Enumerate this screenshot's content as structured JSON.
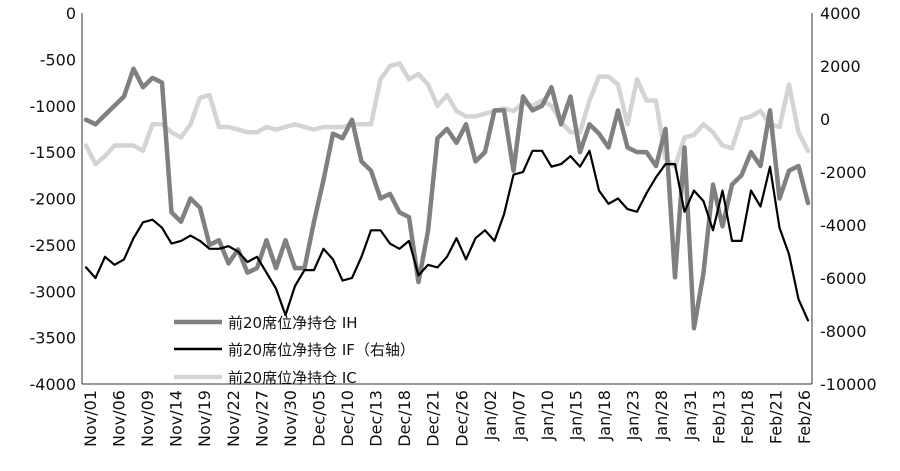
{
  "chart_data": {
    "type": "line",
    "x_tick_labels": [
      "Nov/01",
      "Nov/06",
      "Nov/09",
      "Nov/14",
      "Nov/19",
      "Nov/22",
      "Nov/27",
      "Nov/30",
      "Dec/05",
      "Dec/10",
      "Dec/13",
      "Dec/18",
      "Dec/21",
      "Dec/26",
      "Jan/02",
      "Jan/07",
      "Jan/10",
      "Jan/15",
      "Jan/18",
      "Jan/23",
      "Jan/28",
      "Jan/31",
      "Feb/13",
      "Feb/18",
      "Feb/21",
      "Feb/26"
    ],
    "y_left": {
      "min": -4000,
      "max": 0,
      "ticks": [
        0,
        -500,
        -1000,
        -1500,
        -2000,
        -2500,
        -3000,
        -3500,
        -4000
      ]
    },
    "y_right": {
      "min": -10000,
      "max": 4000,
      "ticks": [
        4000,
        2000,
        0,
        -2000,
        -4000,
        -6000,
        -8000,
        -10000
      ]
    },
    "grid": false,
    "legend_position": "bottom-left",
    "series": [
      {
        "name": "前20席位净持仓 IH",
        "axis": "left",
        "color": "#808080",
        "values": [
          -1150,
          -1200,
          -1100,
          -1000,
          -900,
          -600,
          -800,
          -700,
          -750,
          -2150,
          -2250,
          -2000,
          -2100,
          -2500,
          -2450,
          -2700,
          -2550,
          -2800,
          -2750,
          -2450,
          -2750,
          -2450,
          -2750,
          -2750,
          -2250,
          -1800,
          -1300,
          -1350,
          -1150,
          -1600,
          -1700,
          -2000,
          -1950,
          -2150,
          -2200,
          -2900,
          -2350,
          -1350,
          -1250,
          -1400,
          -1200,
          -1600,
          -1500,
          -1050,
          -1050,
          -1700,
          -900,
          -1050,
          -1000,
          -800,
          -1200,
          -900,
          -1500,
          -1200,
          -1300,
          -1450,
          -1050,
          -1450,
          -1500,
          -1500,
          -1650,
          -1250,
          -2850,
          -1450,
          -3400,
          -2800,
          -1850,
          -2300,
          -1850,
          -1750,
          -1500,
          -1650,
          -1050,
          -2000,
          -1700,
          -1650,
          -2050
        ]
      },
      {
        "name": "前20席位净持仓 IF（右轴）",
        "axis": "right",
        "color": "#000000",
        "values": [
          -5600,
          -6000,
          -5200,
          -5500,
          -5300,
          -4500,
          -3900,
          -3800,
          -4100,
          -4700,
          -4600,
          -4400,
          -4600,
          -4900,
          -4900,
          -4800,
          -5000,
          -5400,
          -5200,
          -5800,
          -6400,
          -7400,
          -6300,
          -5700,
          -5700,
          -4900,
          -5300,
          -6100,
          -6000,
          -5200,
          -4200,
          -4200,
          -4700,
          -4900,
          -4600,
          -5900,
          -5500,
          -5600,
          -5200,
          -4500,
          -5300,
          -4500,
          -4200,
          -4600,
          -3600,
          -2100,
          -2000,
          -1200,
          -1200,
          -1800,
          -1700,
          -1400,
          -1800,
          -1200,
          -2700,
          -3200,
          -3000,
          -3400,
          -3500,
          -2800,
          -2200,
          -1700,
          -1700,
          -3500,
          -2700,
          -3100,
          -4200,
          -2700,
          -4600,
          -4600,
          -2700,
          -3300,
          -1800,
          -4100,
          -5100,
          -6800,
          -7600
        ]
      },
      {
        "name": "前20席位净持仓 IC",
        "axis": "right",
        "color": "#d4d4d4",
        "values": [
          -1000,
          -1700,
          -1400,
          -1000,
          -1000,
          -1000,
          -1200,
          -200,
          -200,
          -500,
          -700,
          -200,
          800,
          900,
          -300,
          -300,
          -400,
          -500,
          -500,
          -300,
          -400,
          -300,
          -200,
          -300,
          -400,
          -300,
          -300,
          -300,
          -200,
          -200,
          -200,
          1500,
          2000,
          2100,
          1500,
          1700,
          1300,
          500,
          900,
          300,
          100,
          100,
          200,
          300,
          400,
          300,
          600,
          500,
          700,
          500,
          -100,
          -500,
          -500,
          700,
          1600,
          1600,
          1300,
          -200,
          1500,
          700,
          700,
          -1500,
          -1800,
          -700,
          -600,
          -200,
          -500,
          -1000,
          -1100,
          0,
          100,
          300,
          -200,
          -300,
          1300,
          -500,
          -1200
        ]
      }
    ]
  }
}
